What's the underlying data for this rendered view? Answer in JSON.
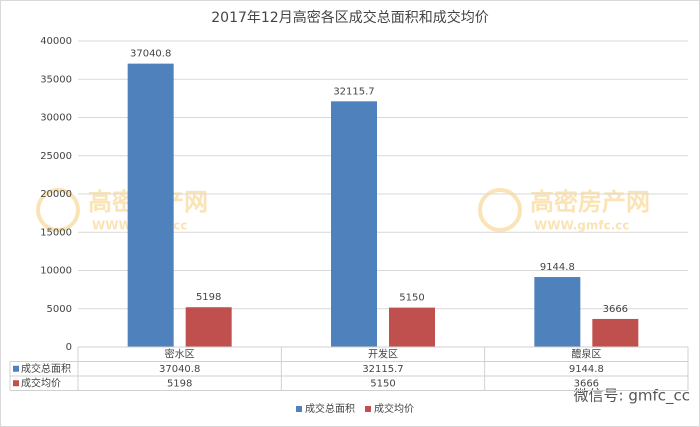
{
  "chart_data": {
    "type": "bar",
    "title": "2017年12月高密各区成交总面积和成交均价",
    "categories": [
      "密水区",
      "开发区",
      "醴泉区"
    ],
    "series": [
      {
        "name": "成交总面积",
        "color": "#4f81bd",
        "values": [
          37040.8,
          32115.7,
          9144.8
        ]
      },
      {
        "name": "成交均价",
        "color": "#c0504d",
        "values": [
          5198,
          5150,
          3666
        ]
      }
    ],
    "ylim": [
      0,
      40000
    ],
    "yticks": [
      0,
      5000,
      10000,
      15000,
      20000,
      25000,
      30000,
      35000,
      40000
    ],
    "grid": true,
    "data_table": true,
    "legend": "bottom",
    "annotations": [
      "高密房产网",
      "WWW.gmfc.cc",
      "高密房产网",
      "WWW.gmfc.cc",
      "微信号: gmfc_cc"
    ]
  }
}
